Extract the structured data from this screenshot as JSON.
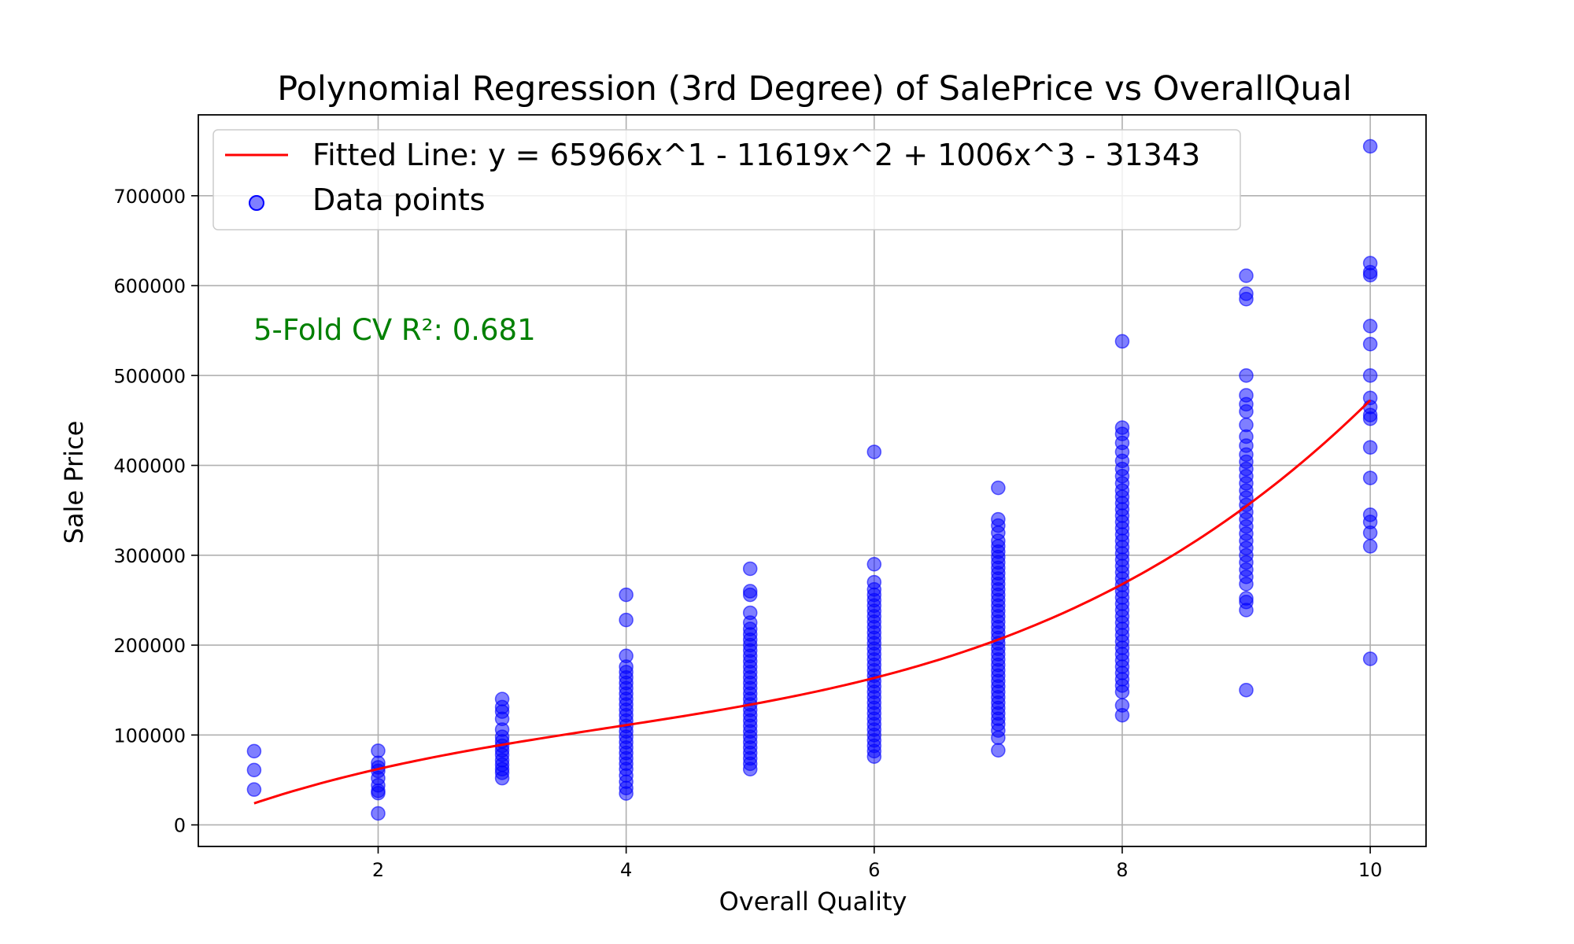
{
  "chart_data": {
    "type": "scatter",
    "title": "Polynomial Regression (3rd Degree) of SalePrice vs OverallQual",
    "xlabel": "Overall Quality",
    "ylabel": "Sale Price",
    "xlim": [
      0.55,
      10.45
    ],
    "ylim": [
      -24000,
      790000
    ],
    "xticks": [
      2,
      4,
      6,
      8,
      10
    ],
    "yticks": [
      0,
      100000,
      200000,
      300000,
      400000,
      500000,
      600000,
      700000
    ],
    "grid": true,
    "legend_position": "top-left",
    "annotation": {
      "text": "5-Fold CV R²: 0.681",
      "color": "#008000"
    },
    "fit": {
      "name": "Fitted Line: y = 65966x^1 - 11619x^2 + 1006x^3 - 31343",
      "color": "#ff0000",
      "coefficients": {
        "intercept": -31343,
        "x1": 65966,
        "x2": -11619,
        "x3": 1006
      },
      "x_range": [
        1,
        10
      ]
    },
    "series": [
      {
        "name": "Data points",
        "color": "#0000ff",
        "points": [
          {
            "x": 1,
            "y": 39300
          },
          {
            "x": 1,
            "y": 61000
          },
          {
            "x": 1,
            "y": 82000
          },
          {
            "x": 2,
            "y": 12789
          },
          {
            "x": 2,
            "y": 35311
          },
          {
            "x": 2,
            "y": 37900
          },
          {
            "x": 2,
            "y": 44000
          },
          {
            "x": 2,
            "y": 52000
          },
          {
            "x": 2,
            "y": 60000
          },
          {
            "x": 2,
            "y": 64000
          },
          {
            "x": 2,
            "y": 69000
          },
          {
            "x": 2,
            "y": 82500
          },
          {
            "x": 3,
            "y": 52000
          },
          {
            "x": 3,
            "y": 58000
          },
          {
            "x": 3,
            "y": 62000
          },
          {
            "x": 3,
            "y": 67000
          },
          {
            "x": 3,
            "y": 72000
          },
          {
            "x": 3,
            "y": 78000
          },
          {
            "x": 3,
            "y": 83000
          },
          {
            "x": 3,
            "y": 88000
          },
          {
            "x": 3,
            "y": 93000
          },
          {
            "x": 3,
            "y": 98000
          },
          {
            "x": 3,
            "y": 106000
          },
          {
            "x": 3,
            "y": 118000
          },
          {
            "x": 3,
            "y": 126000
          },
          {
            "x": 3,
            "y": 131000
          },
          {
            "x": 3,
            "y": 140000
          },
          {
            "x": 4,
            "y": 35000
          },
          {
            "x": 4,
            "y": 41000
          },
          {
            "x": 4,
            "y": 48000
          },
          {
            "x": 4,
            "y": 55000
          },
          {
            "x": 4,
            "y": 62000
          },
          {
            "x": 4,
            "y": 68000
          },
          {
            "x": 4,
            "y": 74000
          },
          {
            "x": 4,
            "y": 80000
          },
          {
            "x": 4,
            "y": 86000
          },
          {
            "x": 4,
            "y": 92000
          },
          {
            "x": 4,
            "y": 98000
          },
          {
            "x": 4,
            "y": 104000
          },
          {
            "x": 4,
            "y": 110000
          },
          {
            "x": 4,
            "y": 116000
          },
          {
            "x": 4,
            "y": 122000
          },
          {
            "x": 4,
            "y": 128000
          },
          {
            "x": 4,
            "y": 134000
          },
          {
            "x": 4,
            "y": 140000
          },
          {
            "x": 4,
            "y": 146000
          },
          {
            "x": 4,
            "y": 152000
          },
          {
            "x": 4,
            "y": 158000
          },
          {
            "x": 4,
            "y": 164000
          },
          {
            "x": 4,
            "y": 170000
          },
          {
            "x": 4,
            "y": 176000
          },
          {
            "x": 4,
            "y": 188000
          },
          {
            "x": 4,
            "y": 228000
          },
          {
            "x": 4,
            "y": 256000
          },
          {
            "x": 5,
            "y": 62000
          },
          {
            "x": 5,
            "y": 68000
          },
          {
            "x": 5,
            "y": 74000
          },
          {
            "x": 5,
            "y": 80000
          },
          {
            "x": 5,
            "y": 86000
          },
          {
            "x": 5,
            "y": 92000
          },
          {
            "x": 5,
            "y": 98000
          },
          {
            "x": 5,
            "y": 104000
          },
          {
            "x": 5,
            "y": 110000
          },
          {
            "x": 5,
            "y": 116000
          },
          {
            "x": 5,
            "y": 122000
          },
          {
            "x": 5,
            "y": 128000
          },
          {
            "x": 5,
            "y": 134000
          },
          {
            "x": 5,
            "y": 140000
          },
          {
            "x": 5,
            "y": 146000
          },
          {
            "x": 5,
            "y": 152000
          },
          {
            "x": 5,
            "y": 158000
          },
          {
            "x": 5,
            "y": 164000
          },
          {
            "x": 5,
            "y": 170000
          },
          {
            "x": 5,
            "y": 176000
          },
          {
            "x": 5,
            "y": 182000
          },
          {
            "x": 5,
            "y": 188000
          },
          {
            "x": 5,
            "y": 194000
          },
          {
            "x": 5,
            "y": 200000
          },
          {
            "x": 5,
            "y": 206000
          },
          {
            "x": 5,
            "y": 212000
          },
          {
            "x": 5,
            "y": 218000
          },
          {
            "x": 5,
            "y": 225000
          },
          {
            "x": 5,
            "y": 236000
          },
          {
            "x": 5,
            "y": 256000
          },
          {
            "x": 5,
            "y": 260000
          },
          {
            "x": 5,
            "y": 285000
          },
          {
            "x": 6,
            "y": 76000
          },
          {
            "x": 6,
            "y": 82000
          },
          {
            "x": 6,
            "y": 88000
          },
          {
            "x": 6,
            "y": 94000
          },
          {
            "x": 6,
            "y": 100000
          },
          {
            "x": 6,
            "y": 106000
          },
          {
            "x": 6,
            "y": 112000
          },
          {
            "x": 6,
            "y": 118000
          },
          {
            "x": 6,
            "y": 124000
          },
          {
            "x": 6,
            "y": 130000
          },
          {
            "x": 6,
            "y": 136000
          },
          {
            "x": 6,
            "y": 142000
          },
          {
            "x": 6,
            "y": 148000
          },
          {
            "x": 6,
            "y": 154000
          },
          {
            "x": 6,
            "y": 160000
          },
          {
            "x": 6,
            "y": 166000
          },
          {
            "x": 6,
            "y": 172000
          },
          {
            "x": 6,
            "y": 178000
          },
          {
            "x": 6,
            "y": 184000
          },
          {
            "x": 6,
            "y": 190000
          },
          {
            "x": 6,
            "y": 196000
          },
          {
            "x": 6,
            "y": 202000
          },
          {
            "x": 6,
            "y": 208000
          },
          {
            "x": 6,
            "y": 214000
          },
          {
            "x": 6,
            "y": 220000
          },
          {
            "x": 6,
            "y": 226000
          },
          {
            "x": 6,
            "y": 232000
          },
          {
            "x": 6,
            "y": 238000
          },
          {
            "x": 6,
            "y": 244000
          },
          {
            "x": 6,
            "y": 250000
          },
          {
            "x": 6,
            "y": 256000
          },
          {
            "x": 6,
            "y": 262000
          },
          {
            "x": 6,
            "y": 270000
          },
          {
            "x": 6,
            "y": 290000
          },
          {
            "x": 6,
            "y": 415000
          },
          {
            "x": 7,
            "y": 83000
          },
          {
            "x": 7,
            "y": 97000
          },
          {
            "x": 7,
            "y": 105000
          },
          {
            "x": 7,
            "y": 112000
          },
          {
            "x": 7,
            "y": 118000
          },
          {
            "x": 7,
            "y": 124000
          },
          {
            "x": 7,
            "y": 130000
          },
          {
            "x": 7,
            "y": 136000
          },
          {
            "x": 7,
            "y": 142000
          },
          {
            "x": 7,
            "y": 148000
          },
          {
            "x": 7,
            "y": 154000
          },
          {
            "x": 7,
            "y": 160000
          },
          {
            "x": 7,
            "y": 166000
          },
          {
            "x": 7,
            "y": 172000
          },
          {
            "x": 7,
            "y": 178000
          },
          {
            "x": 7,
            "y": 184000
          },
          {
            "x": 7,
            "y": 190000
          },
          {
            "x": 7,
            "y": 196000
          },
          {
            "x": 7,
            "y": 202000
          },
          {
            "x": 7,
            "y": 208000
          },
          {
            "x": 7,
            "y": 214000
          },
          {
            "x": 7,
            "y": 220000
          },
          {
            "x": 7,
            "y": 226000
          },
          {
            "x": 7,
            "y": 232000
          },
          {
            "x": 7,
            "y": 238000
          },
          {
            "x": 7,
            "y": 244000
          },
          {
            "x": 7,
            "y": 250000
          },
          {
            "x": 7,
            "y": 256000
          },
          {
            "x": 7,
            "y": 262000
          },
          {
            "x": 7,
            "y": 268000
          },
          {
            "x": 7,
            "y": 274000
          },
          {
            "x": 7,
            "y": 280000
          },
          {
            "x": 7,
            "y": 286000
          },
          {
            "x": 7,
            "y": 292000
          },
          {
            "x": 7,
            "y": 298000
          },
          {
            "x": 7,
            "y": 304000
          },
          {
            "x": 7,
            "y": 310000
          },
          {
            "x": 7,
            "y": 316000
          },
          {
            "x": 7,
            "y": 325000
          },
          {
            "x": 7,
            "y": 333000
          },
          {
            "x": 7,
            "y": 340000
          },
          {
            "x": 7,
            "y": 375000
          },
          {
            "x": 8,
            "y": 122000
          },
          {
            "x": 8,
            "y": 133000
          },
          {
            "x": 8,
            "y": 148000
          },
          {
            "x": 8,
            "y": 155000
          },
          {
            "x": 8,
            "y": 162000
          },
          {
            "x": 8,
            "y": 169000
          },
          {
            "x": 8,
            "y": 176000
          },
          {
            "x": 8,
            "y": 183000
          },
          {
            "x": 8,
            "y": 190000
          },
          {
            "x": 8,
            "y": 197000
          },
          {
            "x": 8,
            "y": 204000
          },
          {
            "x": 8,
            "y": 211000
          },
          {
            "x": 8,
            "y": 218000
          },
          {
            "x": 8,
            "y": 225000
          },
          {
            "x": 8,
            "y": 232000
          },
          {
            "x": 8,
            "y": 239000
          },
          {
            "x": 8,
            "y": 246000
          },
          {
            "x": 8,
            "y": 253000
          },
          {
            "x": 8,
            "y": 260000
          },
          {
            "x": 8,
            "y": 267000
          },
          {
            "x": 8,
            "y": 274000
          },
          {
            "x": 8,
            "y": 281000
          },
          {
            "x": 8,
            "y": 288000
          },
          {
            "x": 8,
            "y": 295000
          },
          {
            "x": 8,
            "y": 302000
          },
          {
            "x": 8,
            "y": 309000
          },
          {
            "x": 8,
            "y": 316000
          },
          {
            "x": 8,
            "y": 323000
          },
          {
            "x": 8,
            "y": 330000
          },
          {
            "x": 8,
            "y": 337000
          },
          {
            "x": 8,
            "y": 344000
          },
          {
            "x": 8,
            "y": 351000
          },
          {
            "x": 8,
            "y": 358000
          },
          {
            "x": 8,
            "y": 365000
          },
          {
            "x": 8,
            "y": 372000
          },
          {
            "x": 8,
            "y": 380000
          },
          {
            "x": 8,
            "y": 388000
          },
          {
            "x": 8,
            "y": 396000
          },
          {
            "x": 8,
            "y": 405000
          },
          {
            "x": 8,
            "y": 415000
          },
          {
            "x": 8,
            "y": 425000
          },
          {
            "x": 8,
            "y": 435000
          },
          {
            "x": 8,
            "y": 442000
          },
          {
            "x": 8,
            "y": 538000
          },
          {
            "x": 9,
            "y": 150000
          },
          {
            "x": 9,
            "y": 239000
          },
          {
            "x": 9,
            "y": 248000
          },
          {
            "x": 9,
            "y": 252000
          },
          {
            "x": 9,
            "y": 268000
          },
          {
            "x": 9,
            "y": 276000
          },
          {
            "x": 9,
            "y": 284000
          },
          {
            "x": 9,
            "y": 292000
          },
          {
            "x": 9,
            "y": 300000
          },
          {
            "x": 9,
            "y": 308000
          },
          {
            "x": 9,
            "y": 316000
          },
          {
            "x": 9,
            "y": 324000
          },
          {
            "x": 9,
            "y": 332000
          },
          {
            "x": 9,
            "y": 340000
          },
          {
            "x": 9,
            "y": 348000
          },
          {
            "x": 9,
            "y": 356000
          },
          {
            "x": 9,
            "y": 364000
          },
          {
            "x": 9,
            "y": 372000
          },
          {
            "x": 9,
            "y": 380000
          },
          {
            "x": 9,
            "y": 388000
          },
          {
            "x": 9,
            "y": 396000
          },
          {
            "x": 9,
            "y": 404000
          },
          {
            "x": 9,
            "y": 412000
          },
          {
            "x": 9,
            "y": 422000
          },
          {
            "x": 9,
            "y": 432000
          },
          {
            "x": 9,
            "y": 445000
          },
          {
            "x": 9,
            "y": 460000
          },
          {
            "x": 9,
            "y": 468000
          },
          {
            "x": 9,
            "y": 478000
          },
          {
            "x": 9,
            "y": 500000
          },
          {
            "x": 9,
            "y": 585000
          },
          {
            "x": 9,
            "y": 591000
          },
          {
            "x": 9,
            "y": 611000
          },
          {
            "x": 10,
            "y": 184750
          },
          {
            "x": 10,
            "y": 310000
          },
          {
            "x": 10,
            "y": 325000
          },
          {
            "x": 10,
            "y": 337000
          },
          {
            "x": 10,
            "y": 345000
          },
          {
            "x": 10,
            "y": 386000
          },
          {
            "x": 10,
            "y": 420000
          },
          {
            "x": 10,
            "y": 451950
          },
          {
            "x": 10,
            "y": 456000
          },
          {
            "x": 10,
            "y": 465000
          },
          {
            "x": 10,
            "y": 475000
          },
          {
            "x": 10,
            "y": 500000
          },
          {
            "x": 10,
            "y": 535000
          },
          {
            "x": 10,
            "y": 555000
          },
          {
            "x": 10,
            "y": 611657
          },
          {
            "x": 10,
            "y": 615000
          },
          {
            "x": 10,
            "y": 625000
          },
          {
            "x": 10,
            "y": 755000
          }
        ]
      }
    ]
  }
}
